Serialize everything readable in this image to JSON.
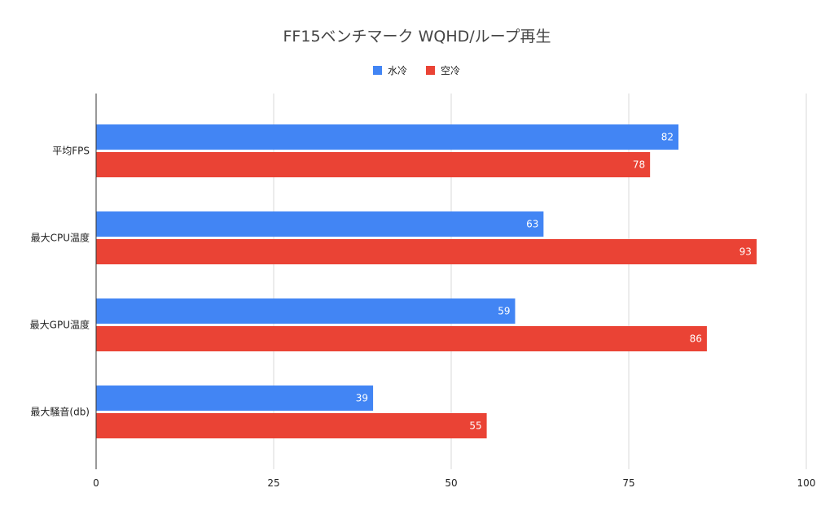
{
  "chart_data": {
    "type": "bar",
    "orientation": "horizontal",
    "title": "FF15ベンチマーク WQHD/ループ再生",
    "categories": [
      "平均FPS",
      "最大CPU温度",
      "最大GPU温度",
      "最大騒音(db)"
    ],
    "series": [
      {
        "name": "水冷",
        "color": "#4285f4",
        "values": [
          82,
          63,
          59,
          39
        ]
      },
      {
        "name": "空冷",
        "color": "#ea4335",
        "values": [
          78,
          93,
          86,
          55
        ]
      }
    ],
    "xlim": [
      0,
      100
    ],
    "x_ticks": [
      0,
      25,
      50,
      75,
      100
    ],
    "grid": true,
    "legend_position": "top-center",
    "data_labels": true
  }
}
